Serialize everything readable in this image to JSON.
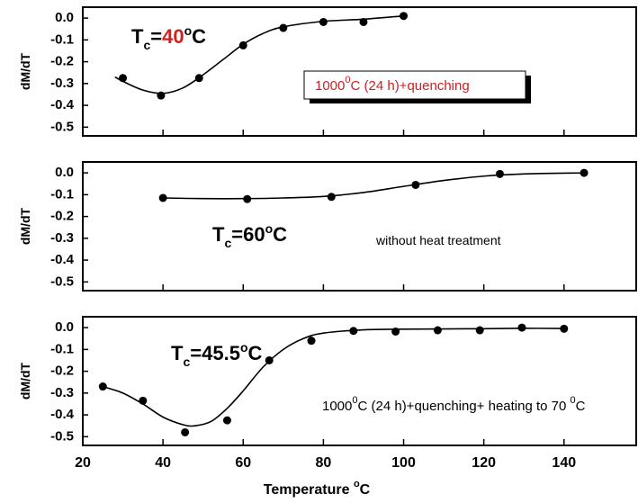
{
  "chart_data": [
    {
      "type": "scatter",
      "color": "#000000",
      "ylabel": "dM/dT",
      "tc_label": [
        "T",
        "c",
        "=",
        "40",
        "o",
        "C"
      ],
      "note": [
        "1000",
        "0",
        "C (24 h)+quenching"
      ],
      "x": [
        30,
        39.5,
        49,
        60,
        70,
        80,
        90,
        100
      ],
      "values": [
        -0.275,
        -0.355,
        -0.275,
        -0.125,
        -0.045,
        -0.018,
        -0.018,
        0.01
      ],
      "fit_x": [
        28,
        30,
        35,
        40,
        45,
        50,
        55,
        60,
        65,
        70,
        80,
        90,
        100
      ],
      "fit_values": [
        -0.27,
        -0.29,
        -0.33,
        -0.345,
        -0.32,
        -0.26,
        -0.19,
        -0.12,
        -0.07,
        -0.04,
        -0.015,
        -0.005,
        0.01
      ],
      "xlim": [
        20,
        158
      ],
      "xticks": [
        20,
        40,
        60,
        80,
        100,
        120,
        140
      ],
      "ylim": [
        -0.54,
        0.05
      ],
      "yticks": [
        {
          "value": 0,
          "label": "0.0"
        },
        -0.1,
        -0.2,
        -0.3,
        -0.4,
        -0.5
      ]
    },
    {
      "type": "scatter",
      "color": "#000000",
      "ylabel": "dM/dT",
      "tc_label": [
        "T",
        "c",
        "=",
        "60",
        "o",
        "C"
      ],
      "note": [
        "without heat treatment"
      ],
      "x": [
        40,
        61,
        82,
        103,
        124,
        145
      ],
      "values": [
        -0.115,
        -0.12,
        -0.11,
        -0.055,
        -0.005,
        0.0
      ],
      "fit_x": [
        40,
        50,
        60,
        70,
        80,
        90,
        100,
        110,
        120,
        130,
        145
      ],
      "fit_values": [
        -0.115,
        -0.118,
        -0.118,
        -0.115,
        -0.108,
        -0.09,
        -0.062,
        -0.035,
        -0.015,
        -0.005,
        0.0
      ],
      "xlim": [
        20,
        158
      ],
      "xticks": [
        20,
        40,
        60,
        80,
        100,
        120,
        140
      ],
      "ylim": [
        -0.54,
        0.05
      ],
      "yticks": [
        {
          "value": 0,
          "label": "0.0"
        },
        -0.1,
        -0.2,
        -0.3,
        -0.4,
        -0.5
      ]
    },
    {
      "type": "scatter",
      "color": "#000000",
      "ylabel": "dM/dT",
      "tc_label": [
        "T",
        "c",
        "=",
        "45.5",
        "o",
        "C"
      ],
      "note": [
        "1000",
        "0",
        "C (24 h)+quenching+ heating to 70 ",
        "0",
        "C"
      ],
      "x": [
        25,
        35,
        45.5,
        56,
        66.5,
        77,
        87.5,
        98,
        108.5,
        119,
        129.5,
        140
      ],
      "values": [
        -0.27,
        -0.335,
        -0.48,
        -0.425,
        -0.15,
        -0.06,
        -0.015,
        -0.018,
        -0.012,
        -0.012,
        0.0,
        -0.005
      ],
      "fit_x": [
        25,
        30,
        35,
        40,
        45,
        48,
        52,
        56,
        60,
        65,
        70,
        75,
        80,
        90,
        100,
        120,
        130,
        140
      ],
      "fit_values": [
        -0.27,
        -0.3,
        -0.35,
        -0.41,
        -0.445,
        -0.45,
        -0.43,
        -0.37,
        -0.29,
        -0.18,
        -0.1,
        -0.05,
        -0.025,
        -0.01,
        -0.007,
        -0.005,
        -0.003,
        -0.004
      ],
      "xlim": [
        20,
        158
      ],
      "xticks": [
        20,
        40,
        60,
        80,
        100,
        120,
        140
      ],
      "ylim": [
        -0.54,
        0.05
      ],
      "yticks": [
        {
          "value": 0,
          "label": "0.0"
        },
        -0.1,
        -0.2,
        -0.3,
        -0.4,
        -0.5
      ],
      "xlabel": [
        "Temperature ",
        "o",
        "C"
      ]
    }
  ]
}
